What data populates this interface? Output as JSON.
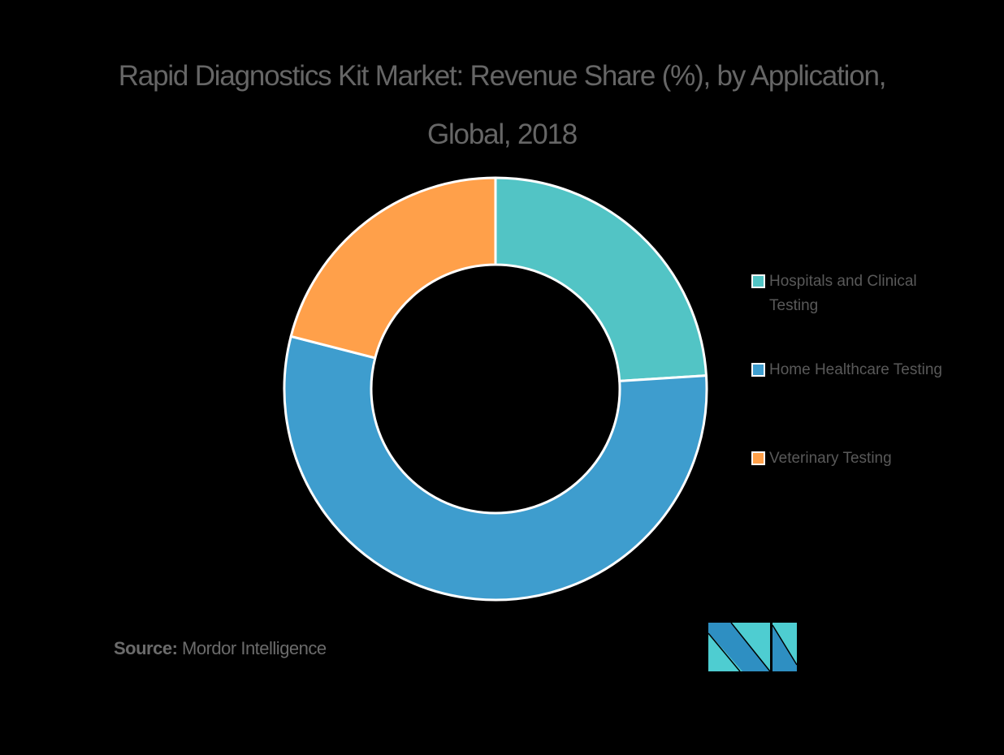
{
  "title": {
    "line1": "Rapid Diagnostics Kit Market: Revenue Share (%), by Application,",
    "line2": "Global, 2018"
  },
  "legend": {
    "items": [
      {
        "label": "Hospitals and Clinical Testing",
        "color": "#52C4C5"
      },
      {
        "label": "Home Healthcare Testing",
        "color": "#3E9DCE"
      },
      {
        "label": "Veterinary Testing",
        "color": "#FFA04A"
      }
    ]
  },
  "source": {
    "prefix": "Source:",
    "text": " Mordor Intelligence"
  },
  "logo": {
    "icon": "mordor-intelligence-logo-icon",
    "colors": {
      "dark": "#2E8FC2",
      "light": "#4ECDD1"
    }
  },
  "chart_data": {
    "type": "pie",
    "subtype": "donut",
    "title": "Rapid Diagnostics Kit Market: Revenue Share (%), by Application, Global, 2018",
    "categories": [
      "Hospitals and Clinical Testing",
      "Home Healthcare Testing",
      "Veterinary Testing"
    ],
    "values": [
      24,
      55,
      21
    ],
    "colors": [
      "#52C4C5",
      "#3E9DCE",
      "#FFA04A"
    ],
    "start_angle_deg": 0,
    "direction": "clockwise",
    "data_labels": false,
    "legend_position": "right",
    "xlabel": "",
    "ylabel": ""
  }
}
